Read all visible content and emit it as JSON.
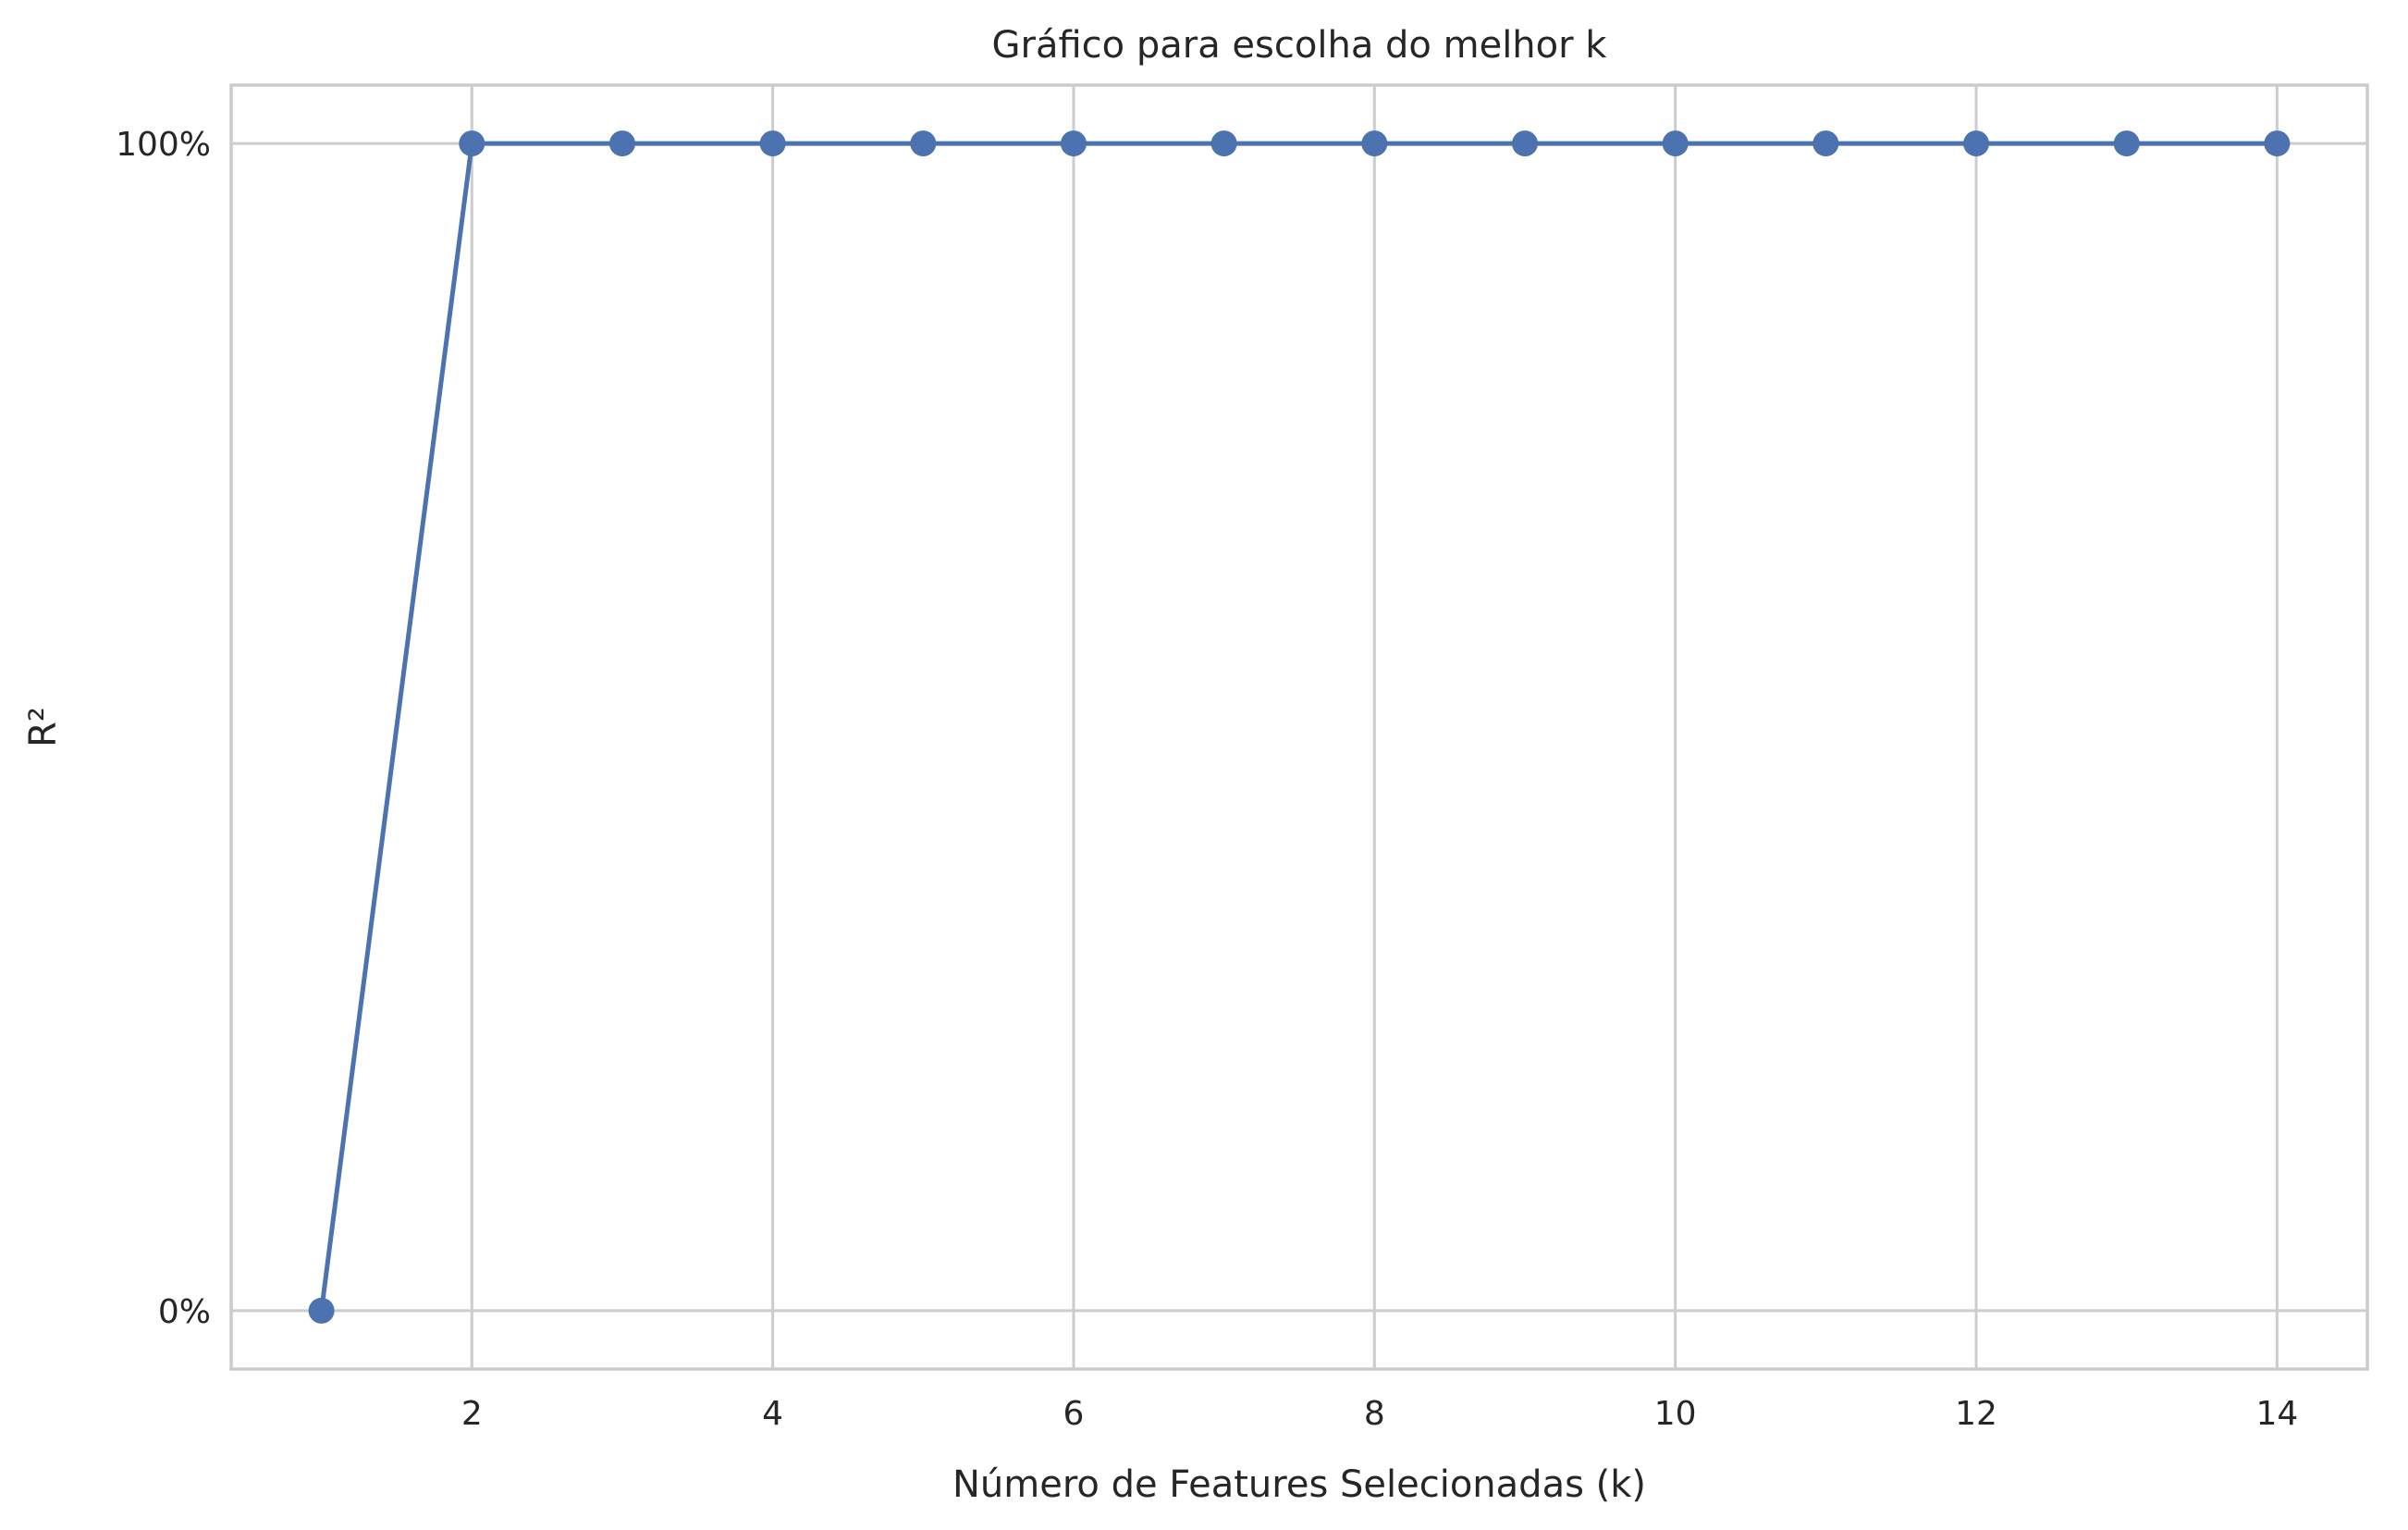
{
  "chart_data": {
    "type": "line",
    "title": "Gráfico para escolha do melhor k",
    "xlabel": "Número de Features Selecionadas (k)",
    "ylabel": "R²",
    "x": [
      1,
      2,
      3,
      4,
      5,
      6,
      7,
      8,
      9,
      10,
      11,
      12,
      13,
      14
    ],
    "series": [
      {
        "values": [
          0,
          100,
          100,
          100,
          100,
          100,
          100,
          100,
          100,
          100,
          100,
          100,
          100,
          100
        ],
        "color": "#4c72b0",
        "marker": "circle"
      }
    ],
    "xticks": [
      2,
      4,
      6,
      8,
      10,
      12,
      14
    ],
    "xtick_labels": [
      "2",
      "4",
      "6",
      "8",
      "10",
      "12",
      "14"
    ],
    "yticks": [
      0,
      100
    ],
    "ytick_labels": [
      "0%",
      "100%"
    ],
    "xlim": [
      0.4,
      14.6
    ],
    "ylim": [
      -5,
      105
    ],
    "grid": true,
    "legend": false
  }
}
